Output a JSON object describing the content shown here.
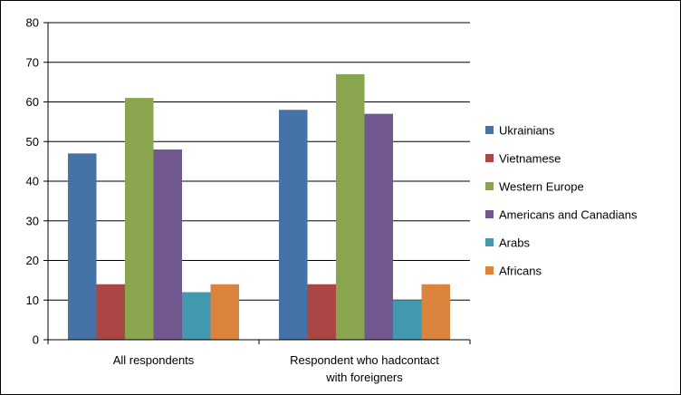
{
  "chart_data": {
    "type": "bar",
    "title": "",
    "xlabel": "",
    "ylabel": "",
    "ylim": [
      0,
      80
    ],
    "yticks": [
      0,
      10,
      20,
      30,
      40,
      50,
      60,
      70,
      80
    ],
    "grid": true,
    "legend_position": "right",
    "categories": [
      [
        "All respondents"
      ],
      [
        "Respondent who hadcontact",
        "with foreigners"
      ]
    ],
    "series": [
      {
        "name": "Ukrainians",
        "color": "#4572A7",
        "values": [
          47,
          58
        ]
      },
      {
        "name": "Vietnamese",
        "color": "#AA4643",
        "values": [
          14,
          14
        ]
      },
      {
        "name": "Western Europe",
        "color": "#89A54E",
        "values": [
          61,
          67
        ]
      },
      {
        "name": "Americans and Canadians",
        "color": "#71588F",
        "values": [
          48,
          57
        ]
      },
      {
        "name": "Arabs",
        "color": "#4198AF",
        "values": [
          12,
          10
        ]
      },
      {
        "name": "Africans",
        "color": "#DB843D",
        "values": [
          14,
          14
        ]
      }
    ]
  }
}
